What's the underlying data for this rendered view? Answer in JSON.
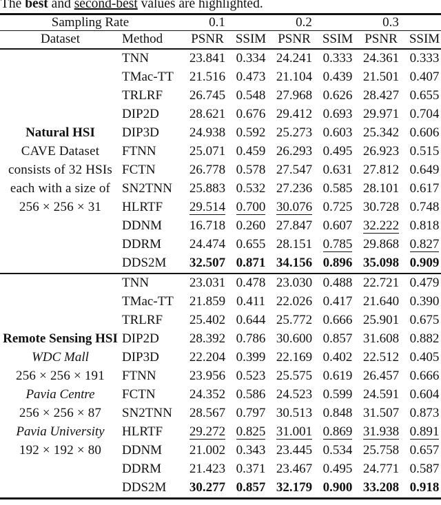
{
  "colors": {
    "text": "#121212",
    "background": "#ffffff"
  },
  "caption": {
    "part1": "The ",
    "best_word": "best",
    "part2": " and ",
    "second_best_word": "second-best",
    "part3": " values are highlighted."
  },
  "header": {
    "sampling_rate": "Sampling Rate",
    "rates": [
      "0.1",
      "0.2",
      "0.3"
    ],
    "dataset": "Dataset",
    "method": "Method",
    "psnr": "PSNR",
    "ssim": "SSIM"
  },
  "sections": [
    {
      "dataset_lines": [
        {
          "text": "Natural HSI",
          "style": "bold"
        },
        {
          "text": "CAVE Dataset",
          "style": "normal"
        },
        {
          "text": "consists of 32 HSIs",
          "style": "normal"
        },
        {
          "text": "each with a size of",
          "style": "normal"
        },
        {
          "text": "256 × 256 × 31",
          "style": "normal"
        }
      ],
      "rows": [
        {
          "method": "TNN",
          "values": [
            "23.841",
            "0.334",
            "24.241",
            "0.333",
            "24.361",
            "0.333"
          ],
          "styles": "nnnnnn"
        },
        {
          "method": "TMac-TT",
          "values": [
            "21.516",
            "0.473",
            "21.104",
            "0.439",
            "21.501",
            "0.407"
          ],
          "styles": "nnnnnn"
        },
        {
          "method": "TRLRF",
          "values": [
            "26.745",
            "0.548",
            "27.968",
            "0.626",
            "28.427",
            "0.655"
          ],
          "styles": "nnnnnn"
        },
        {
          "method": "DIP2D",
          "values": [
            "28.621",
            "0.676",
            "29.412",
            "0.693",
            "29.971",
            "0.704"
          ],
          "styles": "nnnnnn"
        },
        {
          "method": "DIP3D",
          "values": [
            "24.938",
            "0.592",
            "25.273",
            "0.603",
            "25.342",
            "0.606"
          ],
          "styles": "nnnnnn"
        },
        {
          "method": "FTNN",
          "values": [
            "25.071",
            "0.459",
            "26.293",
            "0.495",
            "26.923",
            "0.515"
          ],
          "styles": "nnnnnn"
        },
        {
          "method": "FCTN",
          "values": [
            "26.778",
            "0.578",
            "27.547",
            "0.631",
            "27.812",
            "0.649"
          ],
          "styles": "nnnnnn"
        },
        {
          "method": "SN2TNN",
          "values": [
            "25.883",
            "0.532",
            "27.236",
            "0.585",
            "28.101",
            "0.617"
          ],
          "styles": "nnnnnn"
        },
        {
          "method": "HLRTF",
          "values": [
            "29.514",
            "0.700",
            "30.076",
            "0.725",
            "30.728",
            "0.748"
          ],
          "styles": "uuunnn"
        },
        {
          "method": "DDNM",
          "values": [
            "16.718",
            "0.260",
            "27.847",
            "0.607",
            "32.222",
            "0.818"
          ],
          "styles": "nnnnun"
        },
        {
          "method": "DDRM",
          "values": [
            "24.474",
            "0.655",
            "28.151",
            "0.785",
            "29.868",
            "0.827"
          ],
          "styles": "nnnunu"
        },
        {
          "method": "DDS2M",
          "values": [
            "32.507",
            "0.871",
            "34.156",
            "0.896",
            "35.098",
            "0.909"
          ],
          "styles": "bbbbbb"
        }
      ]
    },
    {
      "dataset_lines": [
        {
          "text": "Remote Sensing HSI",
          "style": "bold"
        },
        {
          "text": "WDC Mall",
          "style": "italic"
        },
        {
          "text": "256 × 256 × 191",
          "style": "normal"
        },
        {
          "text": "Pavia Centre",
          "style": "italic"
        },
        {
          "text": "256 × 256 × 87",
          "style": "normal"
        },
        {
          "text": "Pavia University",
          "style": "italic"
        },
        {
          "text": "192 × 192 × 80",
          "style": "normal"
        }
      ],
      "rows": [
        {
          "method": "TNN",
          "values": [
            "23.031",
            "0.478",
            "23.030",
            "0.488",
            "22.721",
            "0.479"
          ],
          "styles": "nnnnnn"
        },
        {
          "method": "TMac-TT",
          "values": [
            "21.859",
            "0.411",
            "22.026",
            "0.417",
            "21.640",
            "0.390"
          ],
          "styles": "nnnnnn"
        },
        {
          "method": "TRLRF",
          "values": [
            "25.402",
            "0.644",
            "25.772",
            "0.666",
            "25.901",
            "0.675"
          ],
          "styles": "nnnnnn"
        },
        {
          "method": "DIP2D",
          "values": [
            "28.392",
            "0.786",
            "30.600",
            "0.857",
            "31.608",
            "0.882"
          ],
          "styles": "nnnnnn"
        },
        {
          "method": "DIP3D",
          "values": [
            "22.204",
            "0.399",
            "22.169",
            "0.402",
            "22.512",
            "0.405"
          ],
          "styles": "nnnnnn"
        },
        {
          "method": "FTNN",
          "values": [
            "23.956",
            "0.523",
            "25.575",
            "0.619",
            "26.457",
            "0.666"
          ],
          "styles": "nnnnnn"
        },
        {
          "method": "FCTN",
          "values": [
            "24.352",
            "0.586",
            "24.523",
            "0.599",
            "24.591",
            "0.604"
          ],
          "styles": "nnnnnn"
        },
        {
          "method": "SN2TNN",
          "values": [
            "28.567",
            "0.797",
            "30.513",
            "0.848",
            "31.507",
            "0.873"
          ],
          "styles": "nnnnnn"
        },
        {
          "method": "HLRTF",
          "values": [
            "29.272",
            "0.825",
            "31.001",
            "0.869",
            "31.938",
            "0.891"
          ],
          "styles": "uuuuuu"
        },
        {
          "method": "DDNM",
          "values": [
            "21.002",
            "0.343",
            "23.445",
            "0.534",
            "25.758",
            "0.657"
          ],
          "styles": "nnnnnn"
        },
        {
          "method": "DDRM",
          "values": [
            "21.423",
            "0.371",
            "23.467",
            "0.495",
            "24.771",
            "0.587"
          ],
          "styles": "nnnnnn"
        },
        {
          "method": "DDS2M",
          "values": [
            "30.277",
            "0.857",
            "32.179",
            "0.900",
            "33.208",
            "0.918"
          ],
          "styles": "bbbbbb"
        }
      ]
    }
  ]
}
